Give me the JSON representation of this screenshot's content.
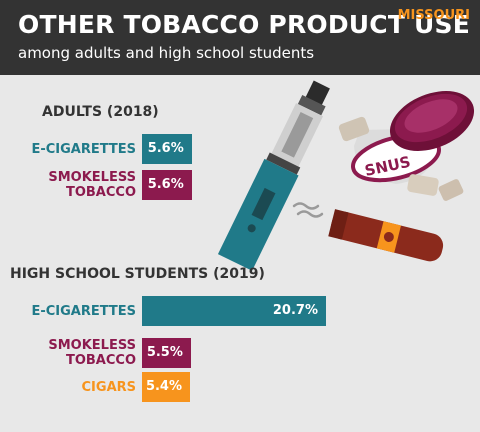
{
  "header": {
    "title": "OTHER TOBACCO PRODUCT USE",
    "subtitle": "among adults and high school students",
    "state": "MISSOURI"
  },
  "illustration": {
    "snus_label": "SNUS"
  },
  "colors": {
    "teal": "#207a89",
    "maroon": "#8c1a4e",
    "orange": "#f7941d",
    "dark": "#333333"
  },
  "chart_data": [
    {
      "type": "bar",
      "title": "ADULTS (2018)",
      "categories": [
        "E-CIGARETTES",
        "SMOKELESS TOBACCO"
      ],
      "label_lines": [
        [
          "E-CIGARETTES"
        ],
        [
          "SMOKELESS",
          "TOBACCO"
        ]
      ],
      "values": [
        5.6,
        5.6
      ],
      "value_labels": [
        "5.6%",
        "5.6%"
      ],
      "colors": [
        "#207a89",
        "#8c1a4e"
      ]
    },
    {
      "type": "bar",
      "title": "HIGH SCHOOL STUDENTS (2019)",
      "categories": [
        "E-CIGARETTES",
        "SMOKELESS TOBACCO",
        "CIGARS"
      ],
      "label_lines": [
        [
          "E-CIGARETTES"
        ],
        [
          "SMOKELESS",
          "TOBACCO"
        ],
        [
          "CIGARS"
        ]
      ],
      "values": [
        20.7,
        5.5,
        5.4
      ],
      "value_labels": [
        "20.7%",
        "5.5%",
        "5.4%"
      ],
      "colors": [
        "#207a89",
        "#8c1a4e",
        "#f7941d"
      ]
    }
  ]
}
